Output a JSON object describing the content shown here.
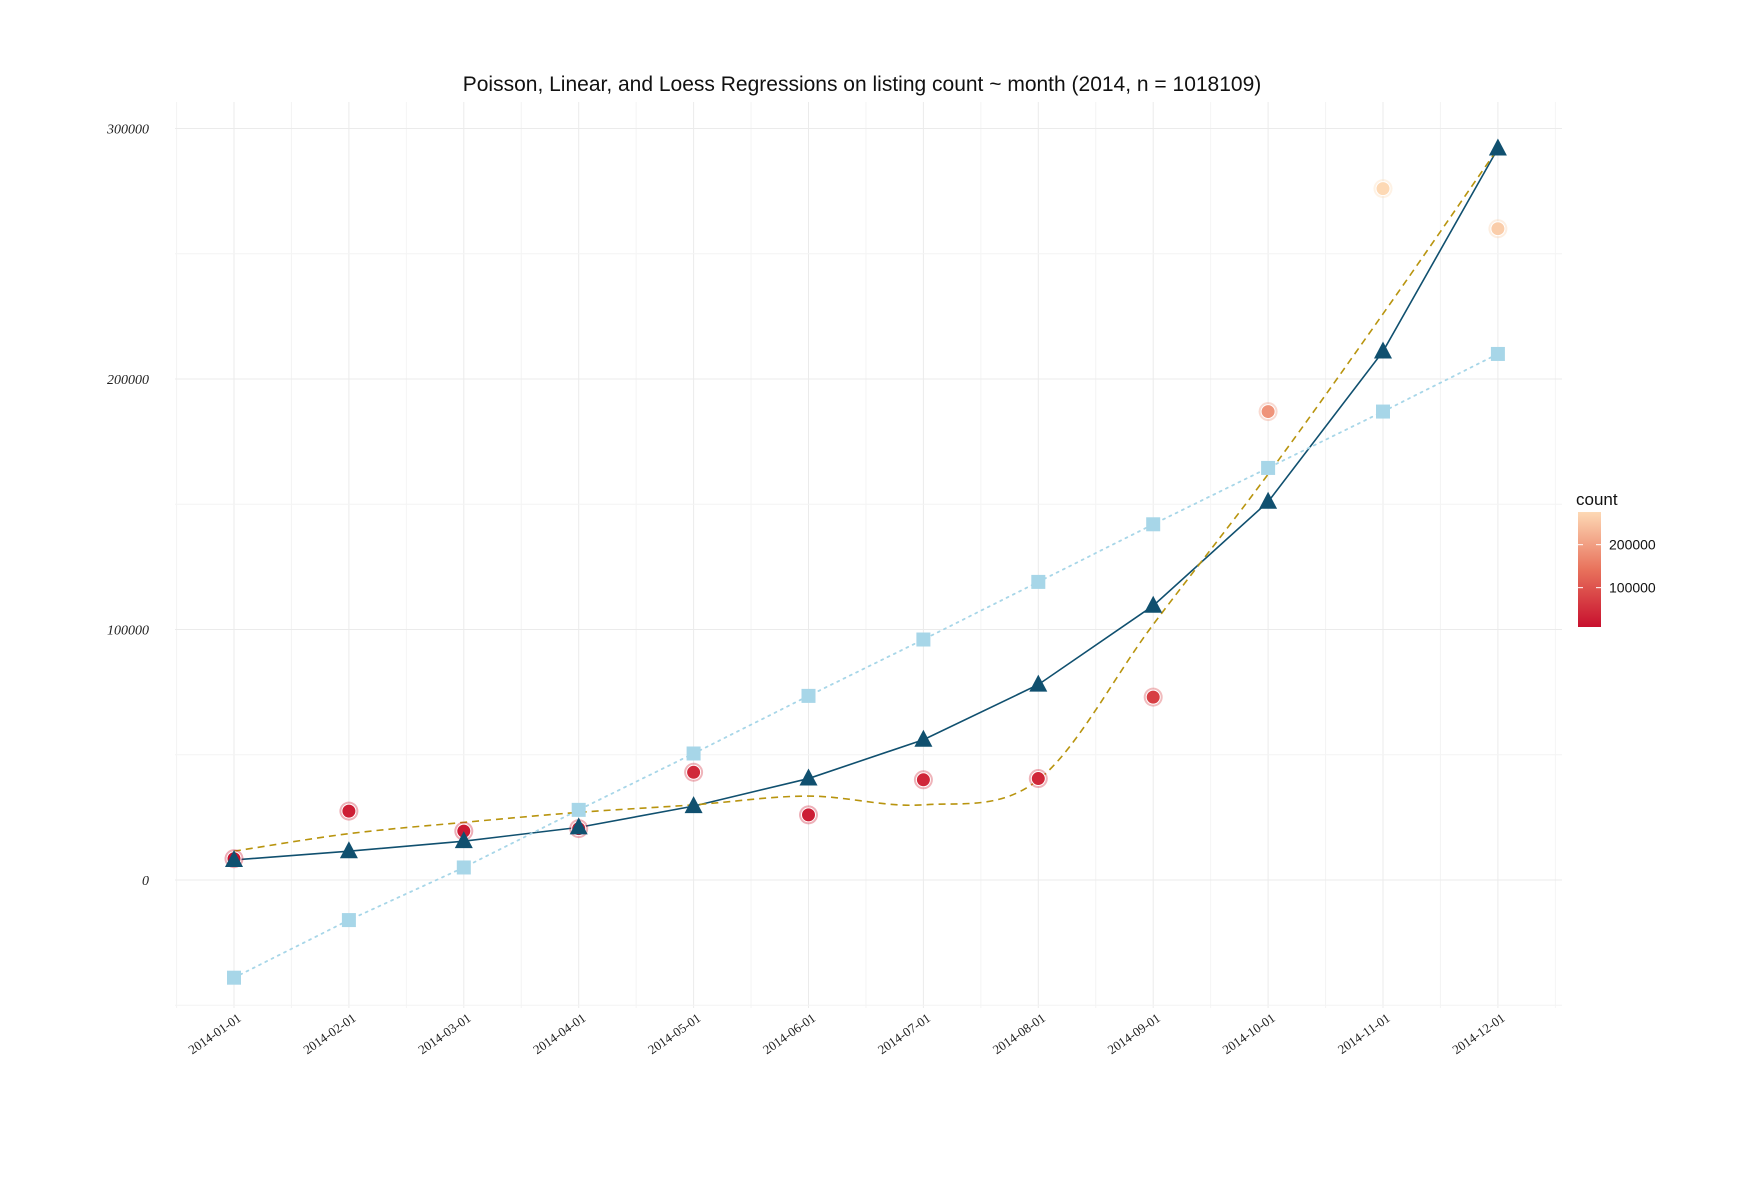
{
  "chart_data": {
    "type": "scatter",
    "title": "Poisson, Linear, and Loess Regressions on listing count ~ month (2014, n = 1018109)",
    "xlabel": "",
    "ylabel": "",
    "x": [
      "2014-01-01",
      "2014-02-01",
      "2014-03-01",
      "2014-04-01",
      "2014-05-01",
      "2014-06-01",
      "2014-07-01",
      "2014-08-01",
      "2014-09-01",
      "2014-10-01",
      "2014-11-01",
      "2014-12-01"
    ],
    "x_tick_labels": [
      "2014-01-01",
      "2014-02-01",
      "2014-03-01",
      "2014-04-01",
      "2014-05-01",
      "2014-06-01",
      "2014-07-01",
      "2014-08-01",
      "2014-09-01",
      "2014-10-01",
      "2014-11-01",
      "2014-12-01"
    ],
    "ylim": [
      -50000,
      310000
    ],
    "y_ticks": [
      0,
      100000,
      200000,
      300000
    ],
    "y_tick_labels": [
      "0",
      "100000",
      "200000",
      "300000"
    ],
    "grid": true,
    "series": [
      {
        "kind": "observed points",
        "marker": "circle",
        "color_by": "count",
        "values": [
          8500,
          27500,
          19500,
          20500,
          43000,
          26000,
          40000,
          40500,
          73000,
          187000,
          276000,
          260000
        ]
      },
      {
        "kind": "fitted",
        "marker": "triangle",
        "line": "solid",
        "color": "#10506f",
        "values": [
          8000,
          11500,
          15500,
          21000,
          29500,
          40500,
          56000,
          78000,
          109500,
          151000,
          211000,
          292000
        ]
      },
      {
        "kind": "fitted",
        "marker": "square",
        "line": "dotted",
        "color": "#a7d6e8",
        "values": [
          -39000,
          -16000,
          5000,
          28000,
          50500,
          73500,
          96000,
          119000,
          142000,
          164500,
          187000,
          210000
        ]
      },
      {
        "kind": "smoothed",
        "marker": "none",
        "line": "dashed",
        "color": "#b8940e",
        "values": [
          11500,
          18500,
          23000,
          27000,
          30000,
          33500,
          30000,
          40000,
          102000,
          162000,
          226000,
          292000
        ]
      }
    ],
    "color_scale": {
      "title": "count",
      "low_color": "#c8102e",
      "high_color": "#fdd9b5",
      "range": [
        8500,
        276000
      ],
      "ticks": [
        100000,
        200000
      ],
      "tick_labels": [
        "100000",
        "200000"
      ]
    }
  }
}
